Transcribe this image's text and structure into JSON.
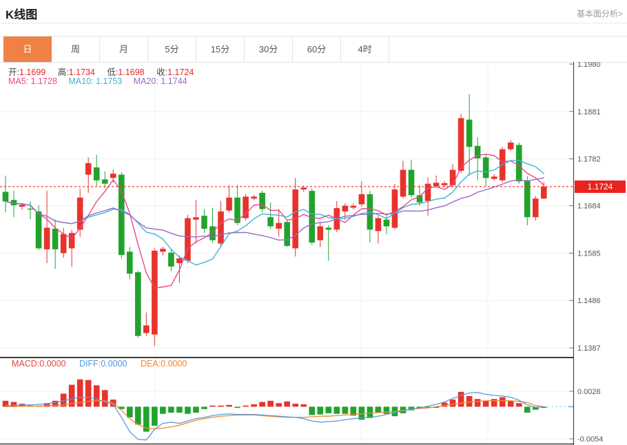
{
  "header": {
    "title": "K线图",
    "link": "基本面分析>"
  },
  "tabs": {
    "items": [
      "日",
      "周",
      "月",
      "5分",
      "15分",
      "30分",
      "60分",
      "4时"
    ],
    "active": "日"
  },
  "ohlc": {
    "open_label": "开:",
    "open_value": "1.1699",
    "high_label": "高:",
    "high_value": "1.1734",
    "low_label": "低:",
    "low_value": "1.1698",
    "close_label": "收:",
    "close_value": "1.1724"
  },
  "ma": {
    "ma5_label": "MA5:",
    "ma5_value": "1.1728",
    "ma10_label": "MA10:",
    "ma10_value": "1.1753",
    "ma20_label": "MA20:",
    "ma20_value": "1.1744"
  },
  "macd_row": {
    "macd_label": "MACD:",
    "macd_value": "0.0000",
    "diff_label": "DIFF:",
    "diff_value": "0.0000",
    "dea_label": "DEA:",
    "dea_value": "0.0000"
  },
  "price_tag": {
    "label": "1.1724"
  },
  "colors": {
    "up": "#e8332c",
    "down": "#21a32b",
    "ma5": "#e8488b",
    "ma10": "#3fb3d4",
    "ma20": "#9a68c8",
    "diff": "#5b9bd5",
    "dea": "#f08a2e",
    "price_line": "#f23a30",
    "tag_bg": "#e8241f",
    "tab_active_bg": "#ef8144",
    "axis": "#444444",
    "grid": "#f0f0f0",
    "label": "#555555",
    "zero_dash": "#9fd2ed"
  },
  "chart_data": {
    "type": "candlestick",
    "convention": "red = up (涨), green = down (跌)",
    "panels": [
      {
        "id": "price",
        "y_ticks": [
          1.198,
          1.1881,
          1.1782,
          1.1684,
          1.1585,
          1.1486,
          1.1387
        ],
        "price_line": 1.1724,
        "x_gridlines": [
          225,
          524,
          708
        ],
        "ma_periods": [
          5,
          10,
          20
        ],
        "candles": {
          "open": [
            1.1713,
            1.1696,
            1.1682,
            1.1678,
            1.1672,
            1.1593,
            1.1636,
            1.1585,
            1.1595,
            1.1634,
            1.1749,
            1.1764,
            1.1739,
            1.1742,
            1.1749,
            1.1588,
            1.1545,
            1.1418,
            1.1415,
            1.1588,
            1.1586,
            1.1564,
            1.1569,
            1.1655,
            1.1663,
            1.1641,
            1.1605,
            1.1674,
            1.1701,
            1.1658,
            1.1699,
            1.1711,
            1.166,
            1.1636,
            1.165,
            1.1595,
            1.1718,
            1.1715,
            1.1612,
            1.1638,
            1.1634,
            1.1672,
            1.168,
            1.1687,
            1.1708,
            1.1631,
            1.1655,
            1.1638,
            1.1703,
            1.1759,
            1.1706,
            1.1694,
            1.1725,
            1.1727,
            1.1727,
            1.1757,
            1.1864,
            1.1809,
            1.1785,
            1.174,
            1.1737,
            1.1802,
            1.1811,
            1.1737,
            1.166,
            1.1699
          ],
          "high": [
            1.1747,
            1.1715,
            1.169,
            1.1693,
            1.1685,
            1.1715,
            1.1655,
            1.1638,
            1.1634,
            1.172,
            1.1785,
            1.179,
            1.1756,
            1.176,
            1.1754,
            1.1598,
            1.1548,
            1.1461,
            1.1595,
            1.1599,
            1.1593,
            1.158,
            1.1665,
            1.1696,
            1.1677,
            1.1679,
            1.1694,
            1.1727,
            1.1727,
            1.1708,
            1.1707,
            1.1715,
            1.1691,
            1.1677,
            1.1655,
            1.1742,
            1.1727,
            1.172,
            1.1651,
            1.1643,
            1.1694,
            1.1689,
            1.1689,
            1.1735,
            1.1715,
            1.1663,
            1.1667,
            1.173,
            1.1778,
            1.178,
            1.1727,
            1.1744,
            1.1747,
            1.1736,
            1.1771,
            1.1876,
            1.1917,
            1.1827,
            1.1792,
            1.175,
            1.1807,
            1.1821,
            1.1816,
            1.1746,
            1.1704,
            1.1734
          ],
          "low": [
            1.167,
            1.166,
            1.1675,
            1.1656,
            1.1592,
            1.1564,
            1.1552,
            1.1575,
            1.1556,
            1.1619,
            1.1711,
            1.1725,
            1.172,
            1.1732,
            1.1574,
            1.153,
            1.1408,
            1.1412,
            1.1391,
            1.158,
            1.1547,
            1.1523,
            1.1564,
            1.1605,
            1.1627,
            1.1607,
            1.16,
            1.167,
            1.1643,
            1.1653,
            1.1695,
            1.167,
            1.1636,
            1.1619,
            1.1598,
            1.1578,
            1.1713,
            1.1602,
            1.1598,
            1.1569,
            1.1629,
            1.1655,
            1.1676,
            1.1682,
            1.1607,
            1.1605,
            1.1624,
            1.1634,
            1.1699,
            1.1701,
            1.1684,
            1.1663,
            1.1722,
            1.1722,
            1.1722,
            1.1752,
            1.1747,
            1.1737,
            1.1725,
            1.1736,
            1.1732,
            1.1799,
            1.173,
            1.1643,
            1.1653,
            1.1698
          ],
          "close": [
            1.1693,
            1.1685,
            1.1686,
            1.1676,
            1.1595,
            1.1638,
            1.1593,
            1.1625,
            1.1627,
            1.1701,
            1.1773,
            1.1737,
            1.173,
            1.1751,
            1.1581,
            1.1542,
            1.1412,
            1.1434,
            1.159,
            1.1594,
            1.1557,
            1.1574,
            1.1658,
            1.166,
            1.1636,
            1.1612,
            1.1672,
            1.1701,
            1.1648,
            1.1703,
            1.1703,
            1.1677,
            1.1641,
            1.1648,
            1.16,
            1.1718,
            1.1722,
            1.1607,
            1.1641,
            1.1634,
            1.1679,
            1.1684,
            1.1684,
            1.1708,
            1.1634,
            1.1658,
            1.1641,
            1.1718,
            1.1759,
            1.1706,
            1.1691,
            1.173,
            1.1732,
            1.1731,
            1.1759,
            1.1867,
            1.1807,
            1.1783,
            1.1742,
            1.1745,
            1.1802,
            1.1816,
            1.1735,
            1.166,
            1.1699,
            1.1724
          ]
        }
      },
      {
        "id": "macd",
        "y_ticks": [
          0.0026,
          -0.0054
        ],
        "zero_level": 0,
        "histogram": [
          0.001,
          0.0008,
          0.0005,
          0.0002,
          0.0001,
          0.0006,
          0.001,
          0.0022,
          0.0037,
          0.0046,
          0.0045,
          0.0036,
          0.0028,
          0.0012,
          -0.0004,
          -0.0018,
          -0.003,
          -0.0042,
          -0.0032,
          -0.0012,
          -0.001,
          -0.001,
          -0.0012,
          -0.001,
          -0.0004,
          0.0002,
          0.0002,
          0.0003,
          -0.0002,
          0.0002,
          0.0004,
          0.0008,
          0.001,
          0.0006,
          0.0009,
          0.0005,
          0.0004,
          -0.0014,
          -0.0013,
          -0.0011,
          -0.0012,
          -0.0012,
          -0.0015,
          -0.0022,
          -0.0019,
          -0.001,
          -0.0012,
          -0.0016,
          -0.0011,
          -0.0006,
          -0.0003,
          -0.0002,
          -0.0001,
          0.0007,
          0.0012,
          0.0025,
          0.0018,
          0.0013,
          0.001,
          0.0013,
          0.0016,
          0.001,
          0.0006,
          -0.001,
          -0.0005,
          -0.0002
        ],
        "diff": [
          0.0002,
          0.0002,
          0.0003,
          0.0003,
          0.0004,
          0.0005,
          0.0007,
          0.001,
          0.0013,
          0.0016,
          0.0016,
          0.0013,
          0.0008,
          0.0004,
          -0.0018,
          -0.0042,
          -0.0055,
          -0.0056,
          -0.0038,
          -0.0028,
          -0.0026,
          -0.0028,
          -0.0024,
          -0.002,
          -0.0018,
          -0.0015,
          -0.0013,
          -0.0012,
          -0.0013,
          -0.0013,
          -0.0013,
          -0.0014,
          -0.0015,
          -0.0016,
          -0.0017,
          -0.0018,
          -0.002,
          -0.0024,
          -0.0026,
          -0.0025,
          -0.0024,
          -0.0022,
          -0.002,
          -0.0019,
          -0.0018,
          -0.0016,
          -0.0013,
          -0.001,
          -0.0007,
          -0.0004,
          -0.0002,
          0.0001,
          0.0004,
          0.0008,
          0.0014,
          0.0019,
          0.0023,
          0.0024,
          0.0021,
          0.0019,
          0.0018,
          0.0016,
          0.0011,
          0.0003,
          -0.0001,
          0.0
        ],
        "dea": [
          0.0,
          0.0,
          0.0001,
          0.0001,
          0.0001,
          0.0002,
          0.0002,
          0.0003,
          0.0005,
          0.0007,
          0.0009,
          0.001,
          0.001,
          0.0006,
          -0.0006,
          -0.002,
          -0.003,
          -0.0036,
          -0.0037,
          -0.0036,
          -0.0034,
          -0.0031,
          -0.0027,
          -0.0023,
          -0.002,
          -0.0018,
          -0.0016,
          -0.0015,
          -0.0014,
          -0.0014,
          -0.0014,
          -0.0015,
          -0.0016,
          -0.0017,
          -0.0018,
          -0.0018,
          -0.0018,
          -0.0017,
          -0.0016,
          -0.0016,
          -0.0015,
          -0.0014,
          -0.0013,
          -0.0012,
          -0.0011,
          -0.001,
          -0.0009,
          -0.0008,
          -0.0006,
          -0.0004,
          -0.0003,
          -0.0002,
          0.0,
          0.0002,
          0.0004,
          0.0006,
          0.0008,
          0.0009,
          0.001,
          0.001,
          0.001,
          0.001,
          0.0009,
          0.0007,
          0.0002,
          0.0
        ]
      }
    ]
  }
}
